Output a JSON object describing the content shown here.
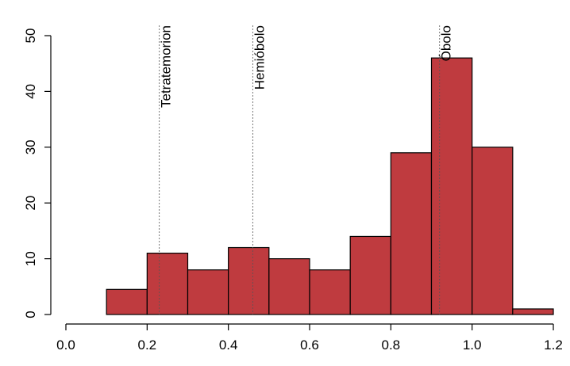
{
  "chart_data": {
    "type": "histogram",
    "title": "",
    "xlabel": "",
    "ylabel": "",
    "xlim": [
      0.0,
      1.2
    ],
    "ylim": [
      0,
      50
    ],
    "xticks": [
      "0.0",
      "0.2",
      "0.4",
      "0.6",
      "0.8",
      "1.0",
      "1.2"
    ],
    "yticks": [
      "0",
      "10",
      "20",
      "30",
      "40",
      "50"
    ],
    "bar_color": "#bf3b3f",
    "bins": [
      {
        "x0": 0.1,
        "x1": 0.2,
        "value": 4.5
      },
      {
        "x0": 0.2,
        "x1": 0.3,
        "value": 11
      },
      {
        "x0": 0.3,
        "x1": 0.4,
        "value": 8
      },
      {
        "x0": 0.4,
        "x1": 0.5,
        "value": 12
      },
      {
        "x0": 0.5,
        "x1": 0.6,
        "value": 10
      },
      {
        "x0": 0.6,
        "x1": 0.7,
        "value": 8
      },
      {
        "x0": 0.7,
        "x1": 0.8,
        "value": 14
      },
      {
        "x0": 0.8,
        "x1": 0.9,
        "value": 29
      },
      {
        "x0": 0.9,
        "x1": 1.0,
        "value": 46
      },
      {
        "x0": 1.0,
        "x1": 1.1,
        "value": 30
      },
      {
        "x0": 1.1,
        "x1": 1.2,
        "value": 1
      }
    ],
    "reference_lines": [
      {
        "x": 0.23,
        "label": "Tetratemorion"
      },
      {
        "x": 0.46,
        "label": "Hemióbolo"
      },
      {
        "x": 0.92,
        "label": "Óbolo"
      }
    ],
    "grid": false
  }
}
